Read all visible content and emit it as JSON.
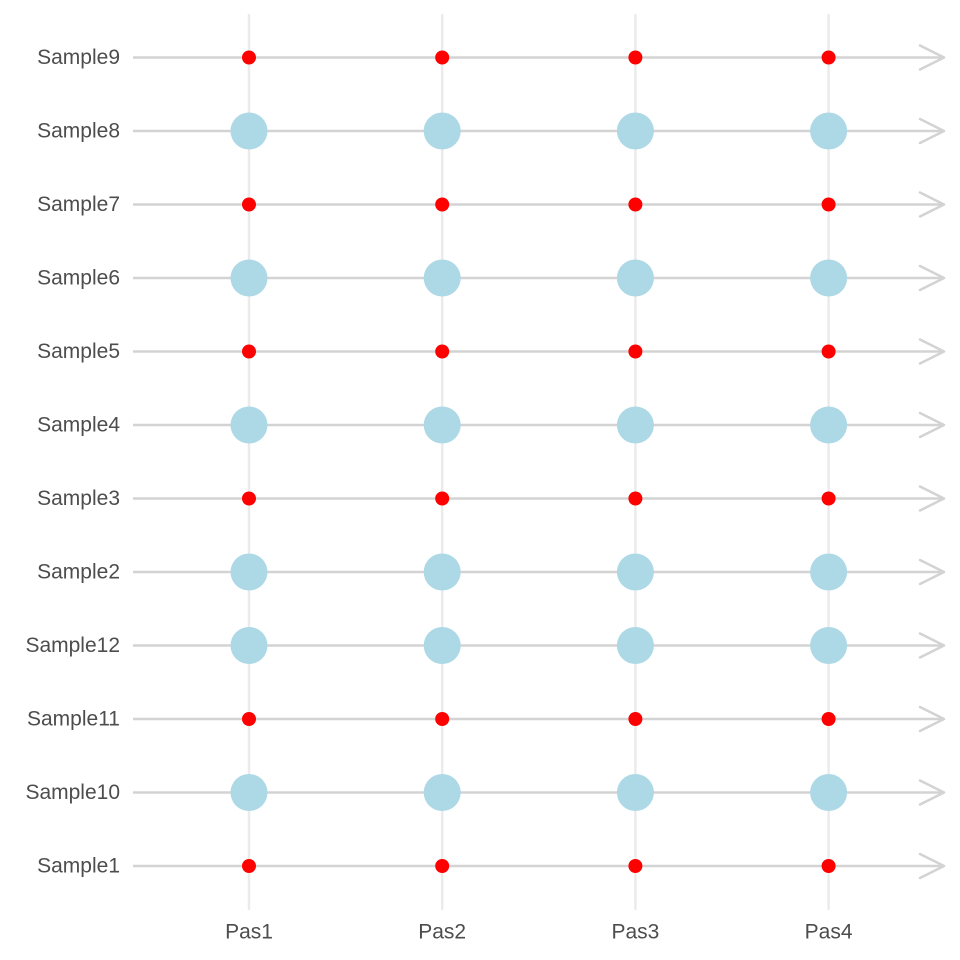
{
  "chart_data": {
    "type": "scatter",
    "title": "",
    "xlabel": "",
    "ylabel": "",
    "categories": [
      "Pas1",
      "Pas2",
      "Pas3",
      "Pas4"
    ],
    "rows": [
      "Sample1",
      "Sample10",
      "Sample11",
      "Sample12",
      "Sample2",
      "Sample3",
      "Sample4",
      "Sample5",
      "Sample6",
      "Sample7",
      "Sample8",
      "Sample9"
    ],
    "marker_styles": {
      "large": {
        "color": "#add8e6",
        "size": "large"
      },
      "small": {
        "color": "#ff0000",
        "size": "small"
      }
    },
    "row_marker": {
      "Sample1": "small",
      "Sample10": "large",
      "Sample11": "small",
      "Sample12": "large",
      "Sample2": "large",
      "Sample3": "small",
      "Sample4": "large",
      "Sample5": "small",
      "Sample6": "large",
      "Sample7": "small",
      "Sample8": "large",
      "Sample9": "small"
    },
    "track_color": "#d3d3d3",
    "grid": {
      "vertical": true,
      "horizontal": false
    },
    "legend": "none"
  }
}
